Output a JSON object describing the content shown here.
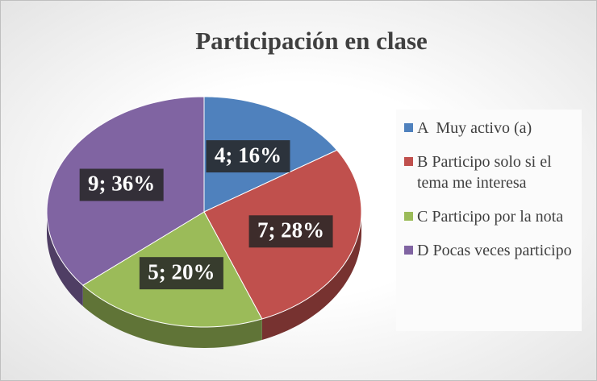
{
  "chart_data": {
    "type": "pie",
    "title": "Participación en clase",
    "categories": [
      "A  Muy activo (a)",
      "B Participo solo si el tema me interesa",
      "C Participo por la nota",
      "D Pocas veces participo"
    ],
    "values": [
      4,
      7,
      5,
      9
    ],
    "value_labels": [
      "4; 16%",
      "7; 28%",
      "5; 20%",
      "9; 36%"
    ],
    "colors": [
      "#4f81bd",
      "#c0504d",
      "#9bbb59",
      "#8064a2"
    ],
    "legend": "right"
  }
}
